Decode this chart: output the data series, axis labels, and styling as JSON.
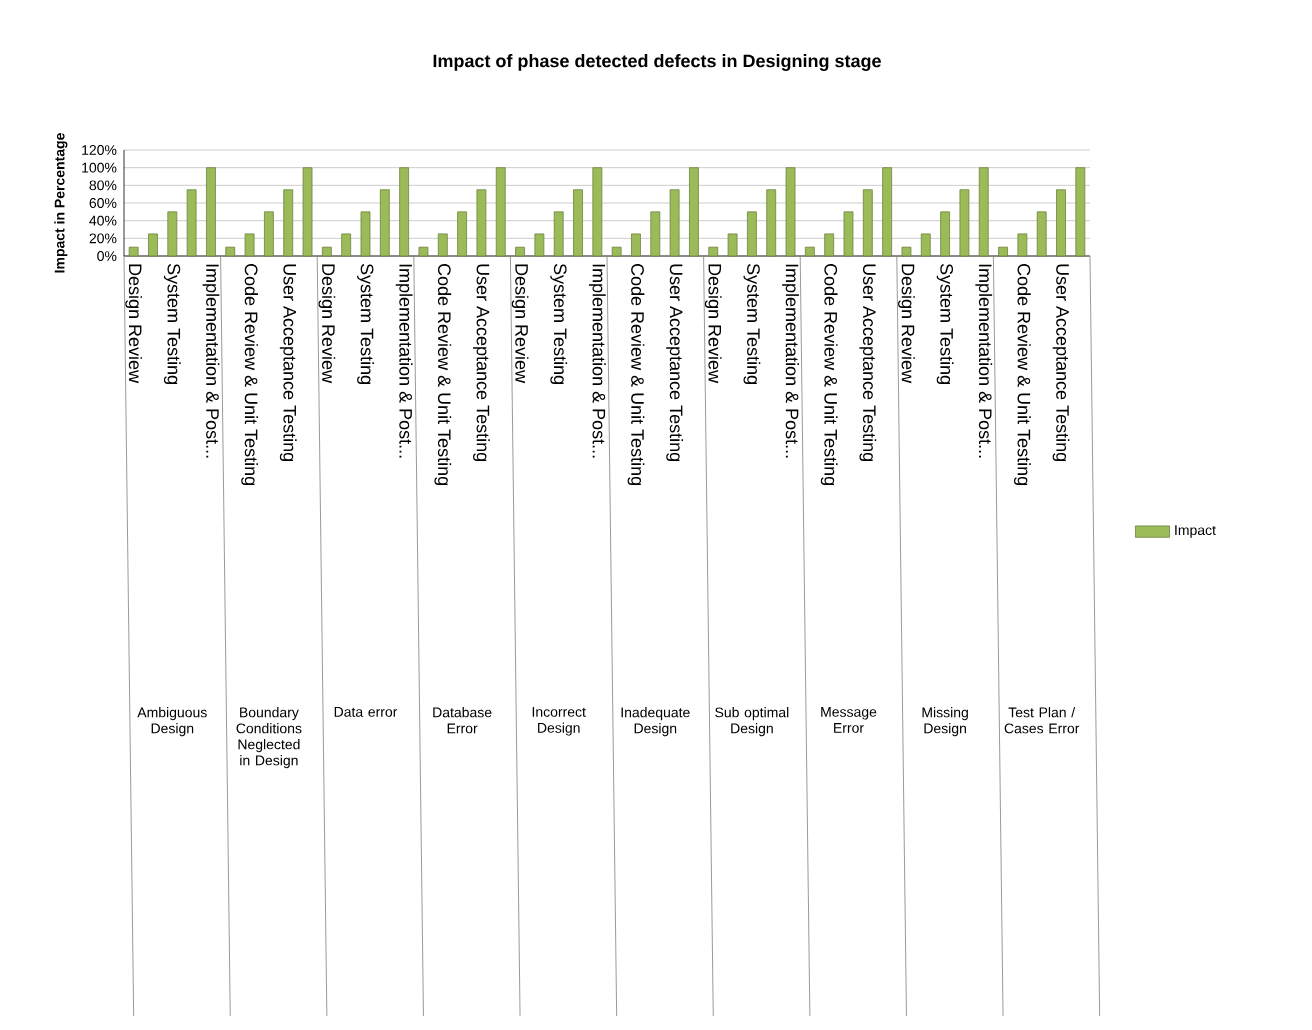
{
  "chart_data": {
    "type": "bar",
    "title": "Impact of phase detected defects in Designing stage",
    "ylabel": "Impact in Percentage",
    "categories": [
      "Design Review",
      null,
      "System Testing",
      null,
      "Implementation & Post...",
      null,
      "Code Review & Unit Testing",
      null,
      "User Acceptance Testing",
      null,
      "Design Review",
      null,
      "System Testing",
      null,
      "Implementation & Post...",
      null,
      "Code Review & Unit Testing",
      null,
      "User Acceptance Testing",
      null,
      "Design Review",
      null,
      "System Testing",
      null,
      "Implementation & Post...",
      null,
      "Code Review & Unit Testing",
      null,
      "User Acceptance Testing",
      null,
      "Design Review",
      null,
      "System Testing",
      null,
      "Implementation & Post...",
      null,
      "Code Review & Unit Testing",
      null,
      "User Acceptance Testing",
      null,
      "Design Review",
      null,
      "System Testing",
      null,
      "Implementation & Post...",
      null,
      "Code Review & Unit Testing",
      null,
      "User Acceptance Testing",
      null
    ],
    "series": [
      {
        "name": "Impact",
        "color": "#9bbb59",
        "values": [
          10,
          25,
          50,
          75,
          100,
          10,
          25,
          50,
          75,
          100,
          10,
          25,
          50,
          75,
          100,
          10,
          25,
          50,
          75,
          100,
          10,
          25,
          50,
          75,
          100,
          10,
          25,
          50,
          75,
          100,
          10,
          25,
          50,
          75,
          100,
          10,
          25,
          50,
          75,
          100,
          10,
          25,
          50,
          75,
          100,
          10,
          25,
          50,
          75,
          100
        ]
      }
    ],
    "annotations": [
      "Ambiguous Design",
      "Boundary Conditions Neglected in Design",
      "Data error",
      "Database Error",
      "Incorrect Design",
      "Inadequate Design",
      "Sub optimal Design",
      "Message Error",
      "Missing Design",
      "Test Plan / Cases Error"
    ],
    "ylim": [
      0,
      120
    ],
    "yticks": [
      {
        "value": 0,
        "label": "0%"
      },
      {
        "value": 20,
        "label": "20%"
      },
      {
        "value": 40,
        "label": "40%"
      },
      {
        "value": 60,
        "label": "60%"
      },
      {
        "value": 80,
        "label": "80%"
      },
      {
        "value": 100,
        "label": "100%"
      },
      {
        "value": 120,
        "label": "120%"
      }
    ],
    "grid": "y",
    "legend": "right"
  }
}
